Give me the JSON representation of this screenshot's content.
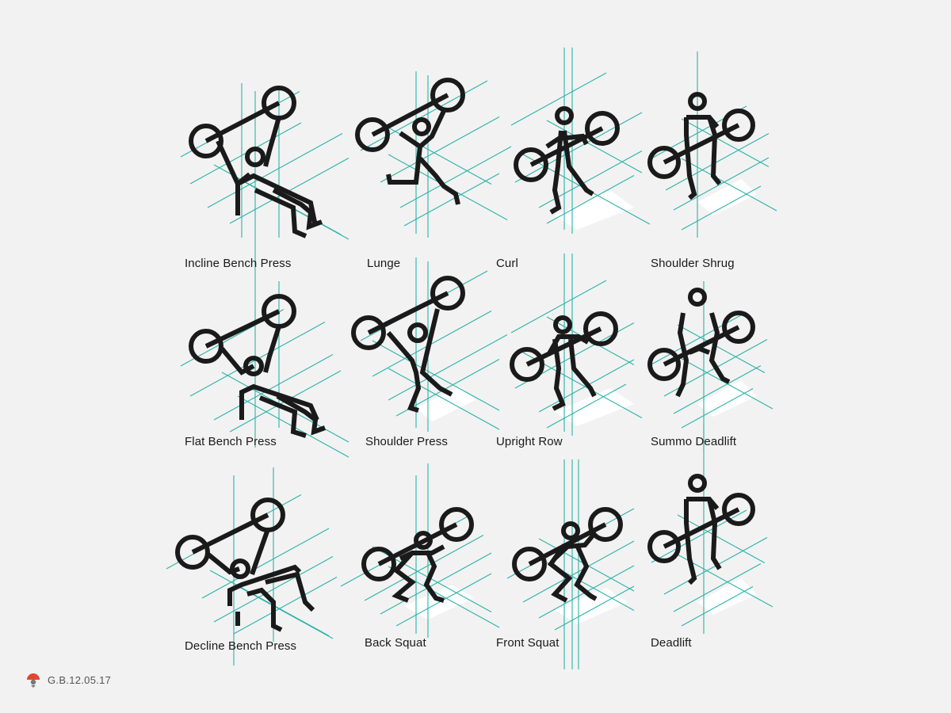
{
  "colors": {
    "background": "#f2f2f2",
    "stroke": "#1a1a1a",
    "guide": "#2bb3a8",
    "floor": "#ffffff",
    "stamp": "#e2462c"
  },
  "exercises": [
    {
      "label": "Incline Bench Press",
      "icon": "incline-bench-press-icon"
    },
    {
      "label": "Lunge",
      "icon": "lunge-icon"
    },
    {
      "label": "Curl",
      "icon": "curl-icon"
    },
    {
      "label": "Shoulder Shrug",
      "icon": "shoulder-shrug-icon"
    },
    {
      "label": "Flat Bench Press",
      "icon": "flat-bench-press-icon"
    },
    {
      "label": "Shoulder Press",
      "icon": "shoulder-press-icon"
    },
    {
      "label": "Upright Row",
      "icon": "upright-row-icon"
    },
    {
      "label": "Summo Deadlift",
      "icon": "summo-deadlift-icon"
    },
    {
      "label": "Decline Bench Press",
      "icon": "decline-bench-press-icon"
    },
    {
      "label": "Back Squat",
      "icon": "back-squat-icon"
    },
    {
      "label": "Front Squat",
      "icon": "front-squat-icon"
    },
    {
      "label": "Deadlift",
      "icon": "deadlift-icon"
    }
  ],
  "signature": {
    "text": "G.B.12.05.17",
    "icon": "signature-stamp-icon"
  }
}
